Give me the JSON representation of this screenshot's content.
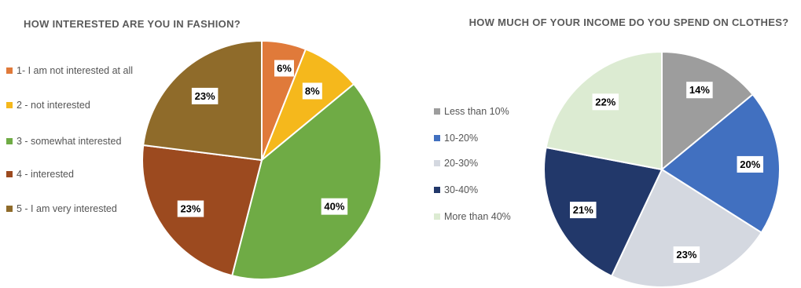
{
  "chart_data": [
    {
      "type": "pie",
      "title": "HOW INTERESTED ARE YOU IN FASHION?",
      "legend_position": "left",
      "slices": [
        {
          "label": "1- I am not interested at all",
          "value": 6,
          "value_label": "6%",
          "color": "#e07a3a"
        },
        {
          "label": "2 - not interested",
          "value": 8,
          "value_label": "8%",
          "color": "#f5b81c"
        },
        {
          "label": "3 - somewhat interested",
          "value": 40,
          "value_label": "40%",
          "color": "#6fab45"
        },
        {
          "label": "4 - interested",
          "value": 23,
          "value_label": "23%",
          "color": "#9c4a1f"
        },
        {
          "label": "5 - I am very interested",
          "value": 23,
          "value_label": "23%",
          "color": "#8f6b2a"
        }
      ]
    },
    {
      "type": "pie",
      "title": "HOW MUCH OF YOUR INCOME DO YOU SPEND ON CLOTHES?",
      "legend_position": "left",
      "slices": [
        {
          "label": "Less than 10%",
          "value": 14,
          "value_label": "14%",
          "color": "#9d9d9d"
        },
        {
          "label": "10-20%",
          "value": 20,
          "value_label": "20%",
          "color": "#4170c0"
        },
        {
          "label": "20-30%",
          "value": 23,
          "value_label": "23%",
          "color": "#d4d8e0"
        },
        {
          "label": "30-40%",
          "value": 21,
          "value_label": "21%",
          "color": "#22386a"
        },
        {
          "label": "More than 40%",
          "value": 22,
          "value_label": "22%",
          "color": "#dcebd2"
        }
      ]
    }
  ]
}
